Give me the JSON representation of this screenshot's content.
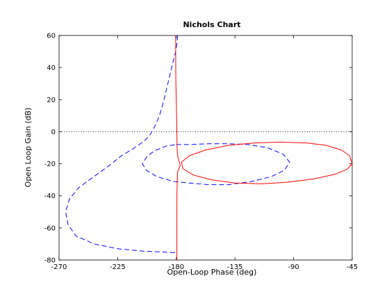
{
  "chart_data": {
    "type": "line",
    "title": "Nichols Chart",
    "xlabel": "Open-Loop Phase (deg)",
    "ylabel": "Open Loop Gain (dB)",
    "xlim": [
      -270,
      -45
    ],
    "ylim": [
      -80,
      60
    ],
    "x_ticks": [
      -270,
      -225,
      -180,
      -135,
      -90,
      -45
    ],
    "y_ticks": [
      -80,
      -60,
      -40,
      -20,
      0,
      20,
      40,
      60
    ],
    "x_tick_labels": [
      "-270",
      "-225",
      "-180",
      "-135",
      "-90",
      "-45"
    ],
    "y_tick_labels": [
      "-80",
      "-60",
      "-40",
      "-20",
      "0",
      "20",
      "40",
      "60"
    ],
    "reference_line": {
      "y": 0,
      "style": "dotted",
      "color": "#000000"
    },
    "grid": false,
    "series": [
      {
        "color": "#0000ff",
        "style": "dashed",
        "points": [
          [
            -179,
            60
          ],
          [
            -179.5,
            55
          ],
          [
            -180.5,
            50
          ],
          [
            -182,
            45
          ],
          [
            -183.5,
            40
          ],
          [
            -185,
            35
          ],
          [
            -186.5,
            30
          ],
          [
            -188,
            25
          ],
          [
            -189.5,
            20
          ],
          [
            -191,
            15
          ],
          [
            -193,
            10
          ],
          [
            -195.5,
            5
          ],
          [
            -198,
            1
          ],
          [
            -201,
            -3
          ],
          [
            -205,
            -6
          ],
          [
            -212,
            -10
          ],
          [
            -222,
            -15
          ],
          [
            -233,
            -22
          ],
          [
            -245,
            -29
          ],
          [
            -255,
            -35
          ],
          [
            -262,
            -42
          ],
          [
            -265,
            -50
          ],
          [
            -263,
            -58
          ],
          [
            -257,
            -65
          ],
          [
            -243,
            -70
          ],
          [
            -225,
            -73
          ],
          [
            -205,
            -74.5
          ],
          [
            -190,
            -75
          ],
          [
            -180,
            -75.5
          ]
        ]
      },
      {
        "color": "#0000ff",
        "style": "dashed",
        "points": [
          [
            -180,
            -8
          ],
          [
            -170,
            -8
          ],
          [
            -155,
            -7.5
          ],
          [
            -140,
            -7.5
          ],
          [
            -125,
            -8
          ],
          [
            -110,
            -10
          ],
          [
            -98,
            -14
          ],
          [
            -93,
            -19
          ],
          [
            -97,
            -24
          ],
          [
            -107,
            -28
          ],
          [
            -122,
            -31
          ],
          [
            -140,
            -33
          ],
          [
            -155,
            -33
          ],
          [
            -170,
            -32
          ],
          [
            -182,
            -31
          ],
          [
            -195,
            -28
          ],
          [
            -203,
            -24
          ],
          [
            -206,
            -20
          ],
          [
            -203,
            -16
          ],
          [
            -197,
            -12
          ],
          [
            -188,
            -9
          ],
          [
            -180,
            -8
          ]
        ]
      },
      {
        "color": "#ff0000",
        "style": "solid",
        "points": [
          [
            -180.5,
            60
          ],
          [
            -180.5,
            50
          ],
          [
            -180.4,
            40
          ],
          [
            -180.3,
            30
          ],
          [
            -180,
            20
          ],
          [
            -179.8,
            10
          ],
          [
            -179.6,
            0
          ],
          [
            -179.4,
            -10
          ],
          [
            -179,
            -15
          ],
          [
            -178,
            -18
          ],
          [
            -177,
            -21
          ],
          [
            -178,
            -23
          ],
          [
            -179,
            -25
          ],
          [
            -179.3,
            -30
          ],
          [
            -179.5,
            -40
          ],
          [
            -179.6,
            -60
          ],
          [
            -179.6,
            -80
          ]
        ]
      },
      {
        "color": "#ff0000",
        "style": "solid",
        "points": [
          [
            -45,
            -20
          ],
          [
            -47,
            -15
          ],
          [
            -53,
            -11.5
          ],
          [
            -65,
            -8.5
          ],
          [
            -80,
            -7
          ],
          [
            -100,
            -6.5
          ],
          [
            -120,
            -7
          ],
          [
            -140,
            -8.5
          ],
          [
            -158,
            -11.5
          ],
          [
            -170,
            -15
          ],
          [
            -176,
            -19
          ],
          [
            -175,
            -23
          ],
          [
            -167,
            -27
          ],
          [
            -153,
            -30
          ],
          [
            -135,
            -32
          ],
          [
            -115,
            -32.5
          ],
          [
            -95,
            -31.5
          ],
          [
            -75,
            -29.5
          ],
          [
            -58,
            -26.5
          ],
          [
            -49,
            -23.5
          ],
          [
            -45,
            -20
          ]
        ]
      }
    ]
  }
}
